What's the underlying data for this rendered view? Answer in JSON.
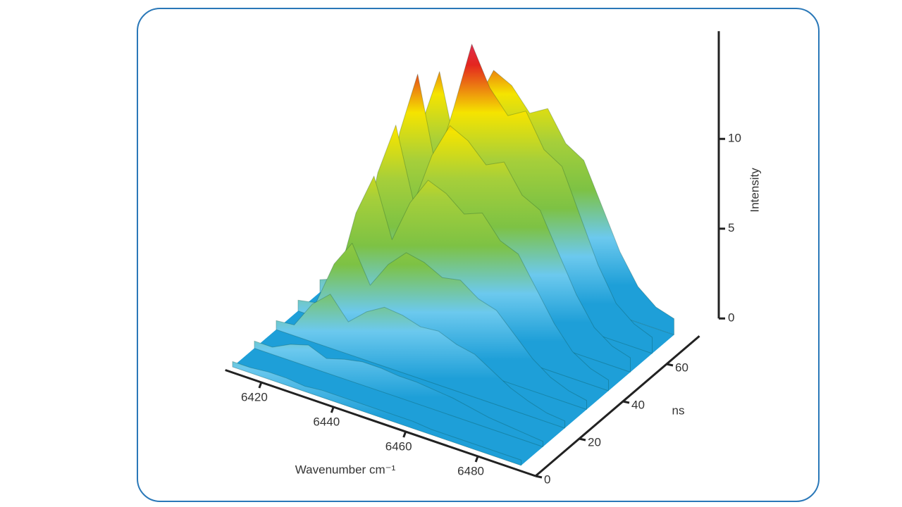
{
  "chart_data": {
    "type": "surface3d",
    "x_label": "Wavenumber cm⁻¹",
    "y_label": "ns",
    "z_label": "Intensity",
    "x": [
      6412,
      6417,
      6422,
      6427,
      6432,
      6437,
      6442,
      6447,
      6452,
      6457,
      6462,
      6467,
      6472,
      6477,
      6482,
      6487,
      6492
    ],
    "xlim": [
      6410,
      6496
    ],
    "xticks": [
      6420,
      6440,
      6460,
      6480
    ],
    "ylim": [
      0,
      75
    ],
    "yticks": [
      0,
      20,
      40,
      60
    ],
    "zlim": [
      0,
      16
    ],
    "zticks": [
      0,
      5,
      10
    ],
    "colors": [
      "#1e9fd8",
      "#6cc9ee",
      "#7dc244",
      "#a6cf3a",
      "#f5e400",
      "#e4261f",
      "#d8388a"
    ],
    "series": [
      {
        "ns": 0,
        "values": [
          0.3,
          0.3,
          0.4,
          0.4,
          0.3,
          0.4,
          0.4,
          0.4,
          0.4,
          0.4,
          0.4,
          0.3,
          0.3,
          0.3,
          0.3,
          0.3,
          0.3
        ]
      },
      {
        "ns": 10,
        "values": [
          0.4,
          0.4,
          0.9,
          1.2,
          0.8,
          1.1,
          1.3,
          1.3,
          1.2,
          1.2,
          1.1,
          1.0,
          0.8,
          0.6,
          0.5,
          0.4,
          0.3
        ]
      },
      {
        "ns": 20,
        "values": [
          0.5,
          0.6,
          2.1,
          3.0,
          1.8,
          2.7,
          3.3,
          3.2,
          2.9,
          3.0,
          2.6,
          2.4,
          1.8,
          1.2,
          0.8,
          0.5,
          0.4
        ]
      },
      {
        "ns": 30,
        "values": [
          0.6,
          0.8,
          3.3,
          4.8,
          2.8,
          4.3,
          5.3,
          5.1,
          4.6,
          4.8,
          4.1,
          3.8,
          2.8,
          1.8,
          1.1,
          0.7,
          0.5
        ]
      },
      {
        "ns": 40,
        "values": [
          0.7,
          1.1,
          5.1,
          7.5,
          4.3,
          6.7,
          8.3,
          7.9,
          7.1,
          7.5,
          6.3,
          5.9,
          4.3,
          2.7,
          1.5,
          0.9,
          0.6
        ]
      },
      {
        "ns": 50,
        "values": [
          0.8,
          1.3,
          6.3,
          9.3,
          5.3,
          8.3,
          10.3,
          9.8,
          8.8,
          9.3,
          7.8,
          7.3,
          5.3,
          3.3,
          1.8,
          1.1,
          0.8
        ]
      },
      {
        "ns": 60,
        "values": [
          0.9,
          1.5,
          7.5,
          11.1,
          6.3,
          9.9,
          13.8,
          11.7,
          10.5,
          11.1,
          9.3,
          8.7,
          6.3,
          3.9,
          2.1,
          1.3,
          0.9
        ]
      },
      {
        "ns": 70,
        "values": [
          0.9,
          1.4,
          6.9,
          10.2,
          5.8,
          9.1,
          11.3,
          10.8,
          9.6,
          10.2,
          8.6,
          8.0,
          5.8,
          3.6,
          2.0,
          1.2,
          0.9
        ]
      }
    ]
  }
}
